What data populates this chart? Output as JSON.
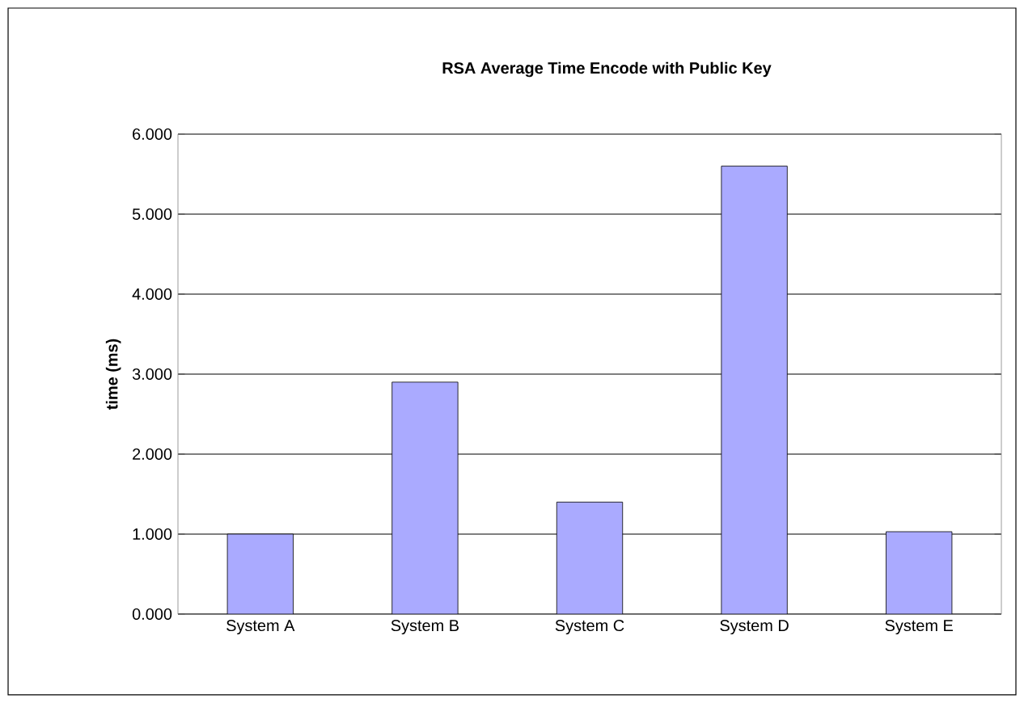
{
  "chart_data": {
    "type": "bar",
    "title": "RSA Average Time Encode with Public Key",
    "ylabel": "time  (ms)",
    "categories": [
      "System A",
      "System B",
      "System C",
      "System D",
      "System E"
    ],
    "values": [
      1.0,
      2.9,
      1.4,
      5.6,
      1.03
    ],
    "color": "#aaaaff",
    "ylim": [
      0,
      6
    ],
    "yticks": [
      {
        "value": 0,
        "label": "0.000"
      },
      {
        "value": 1,
        "label": "1.000"
      },
      {
        "value": 2,
        "label": "2.000"
      },
      {
        "value": 3,
        "label": "3.000"
      },
      {
        "value": 4,
        "label": "4.000"
      },
      {
        "value": 5,
        "label": "5.000"
      },
      {
        "value": 6,
        "label": "6.000"
      }
    ],
    "grid": "y"
  }
}
